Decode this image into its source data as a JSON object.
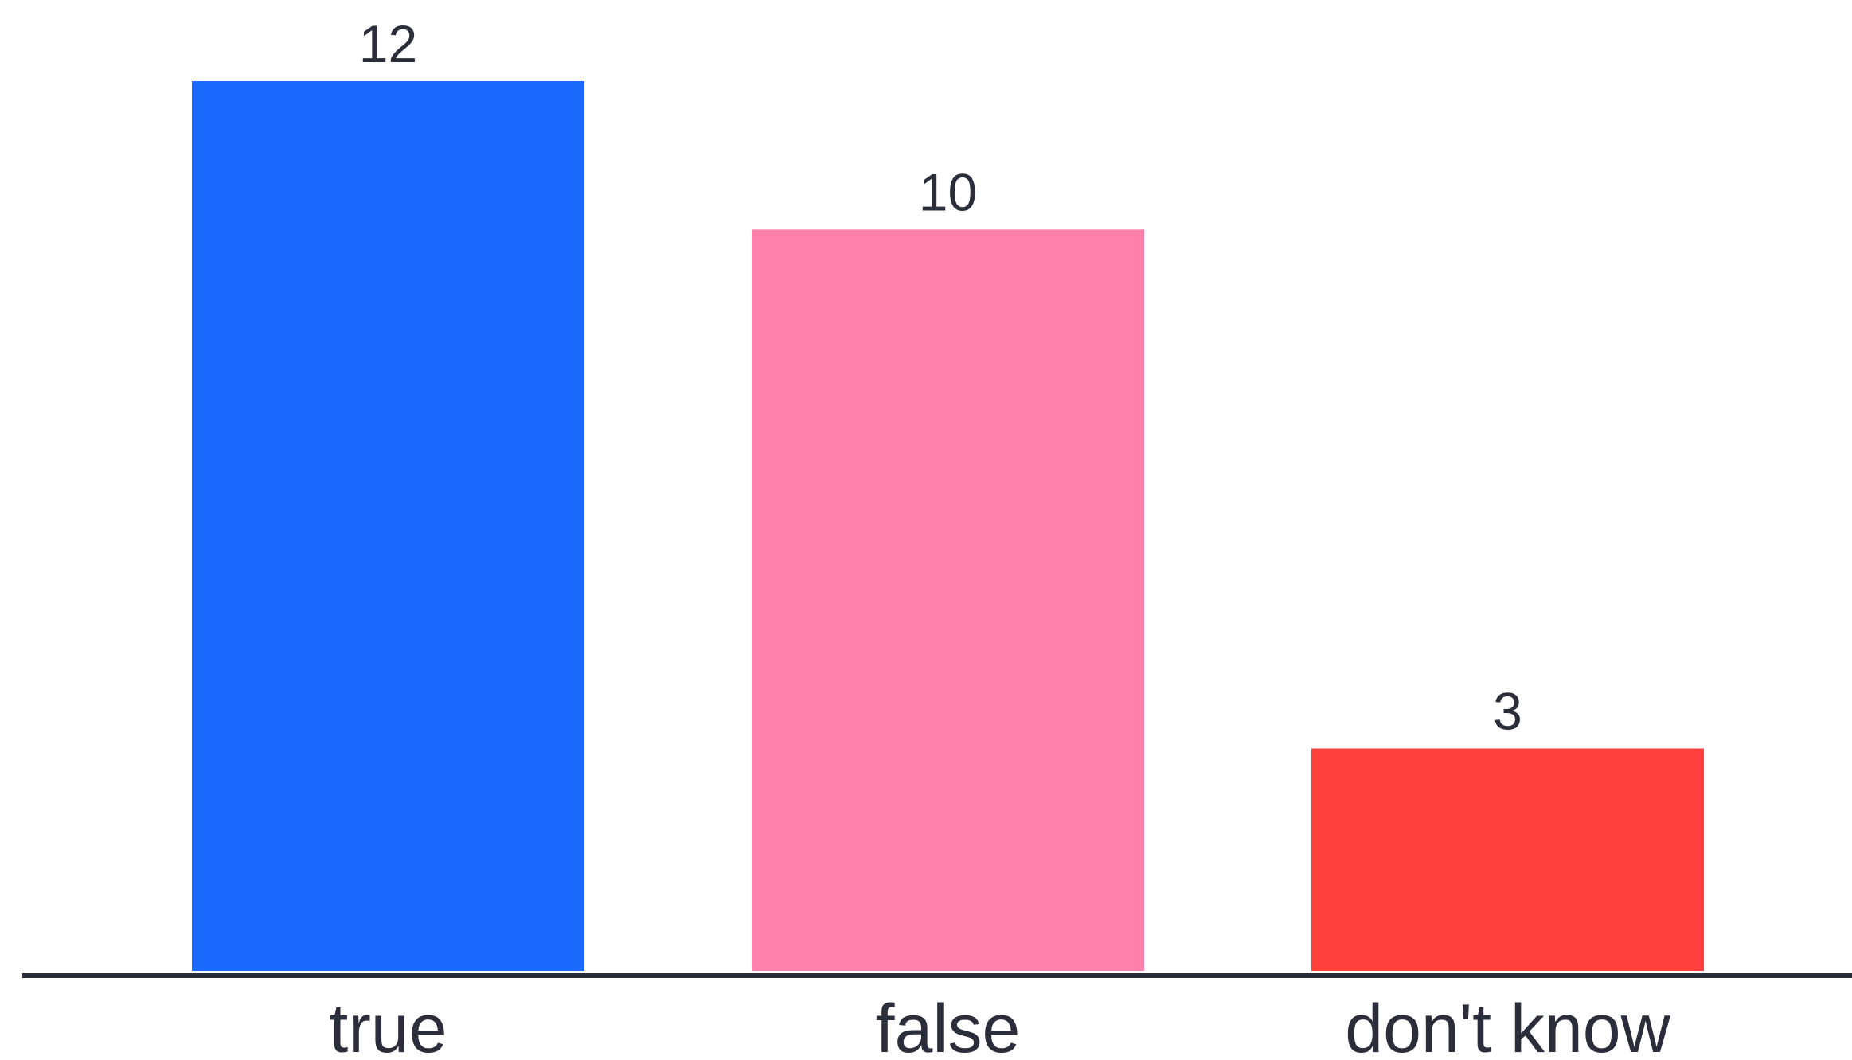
{
  "chart_data": {
    "type": "bar",
    "categories": [
      "true",
      "false",
      "don't know"
    ],
    "values": [
      12,
      10,
      3
    ],
    "colors": [
      "#1b69ff",
      "#ff80aa",
      "#ff403c"
    ],
    "axis_color": "#2b2d3a",
    "title": "",
    "xlabel": "",
    "ylabel": "",
    "ylim": [
      0,
      12
    ],
    "data_labels": true,
    "grid": false,
    "legend": "none"
  }
}
